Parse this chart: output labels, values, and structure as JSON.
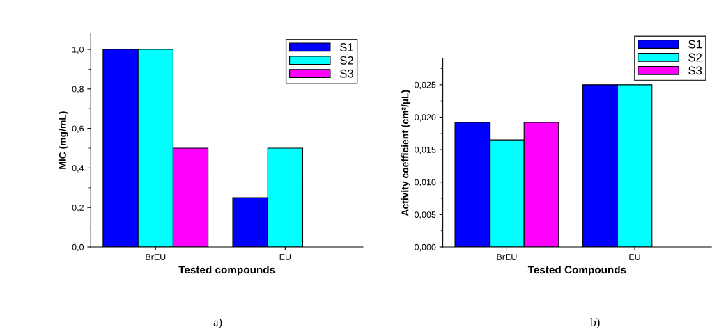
{
  "chart_data": [
    {
      "type": "bar",
      "xlabel": "Tested compounds",
      "ylabel": "MIC (mg/mL)",
      "categories": [
        "BrEU",
        "EU"
      ],
      "series": [
        {
          "name": "S1",
          "color": "#0000ff",
          "values": [
            1.0,
            0.25
          ]
        },
        {
          "name": "S2",
          "color": "#00ffff",
          "values": [
            1.0,
            0.5
          ]
        },
        {
          "name": "S3",
          "color": "#ff00ff",
          "values": [
            0.5,
            null
          ]
        }
      ],
      "ylim": [
        0,
        1.08
      ],
      "yticks": [
        {
          "value": 0,
          "label": "0,0"
        },
        {
          "value": 0.2,
          "label": "0,2"
        },
        {
          "value": 0.4,
          "label": "0,4"
        },
        {
          "value": 0.6,
          "label": "0,6"
        },
        {
          "value": 0.8,
          "label": "0,8"
        },
        {
          "value": 1.0,
          "label": "1,0"
        }
      ],
      "grid": false,
      "legend": "top right",
      "annotations": [
        "a)"
      ]
    },
    {
      "type": "bar",
      "xlabel": "Tested Compounds",
      "ylabel": "Activity coefficient (cm²/µL)",
      "categories": [
        "BrEU",
        "EU"
      ],
      "series": [
        {
          "name": "S1",
          "color": "#0000ff",
          "values": [
            0.0192,
            0.025
          ]
        },
        {
          "name": "S2",
          "color": "#00ffff",
          "values": [
            0.0165,
            0.025
          ]
        },
        {
          "name": "S3",
          "color": "#ff00ff",
          "values": [
            0.0192,
            null
          ]
        }
      ],
      "ylim": [
        0,
        0.029
      ],
      "yticks": [
        {
          "value": 0,
          "label": "0,000"
        },
        {
          "value": 0.005,
          "label": "0,005"
        },
        {
          "value": 0.01,
          "label": "0,010"
        },
        {
          "value": 0.015,
          "label": "0,015"
        },
        {
          "value": 0.02,
          "label": "0,020"
        },
        {
          "value": 0.025,
          "label": "0,025"
        }
      ],
      "grid": false,
      "legend": "top right",
      "annotations": [
        "b)"
      ]
    }
  ]
}
